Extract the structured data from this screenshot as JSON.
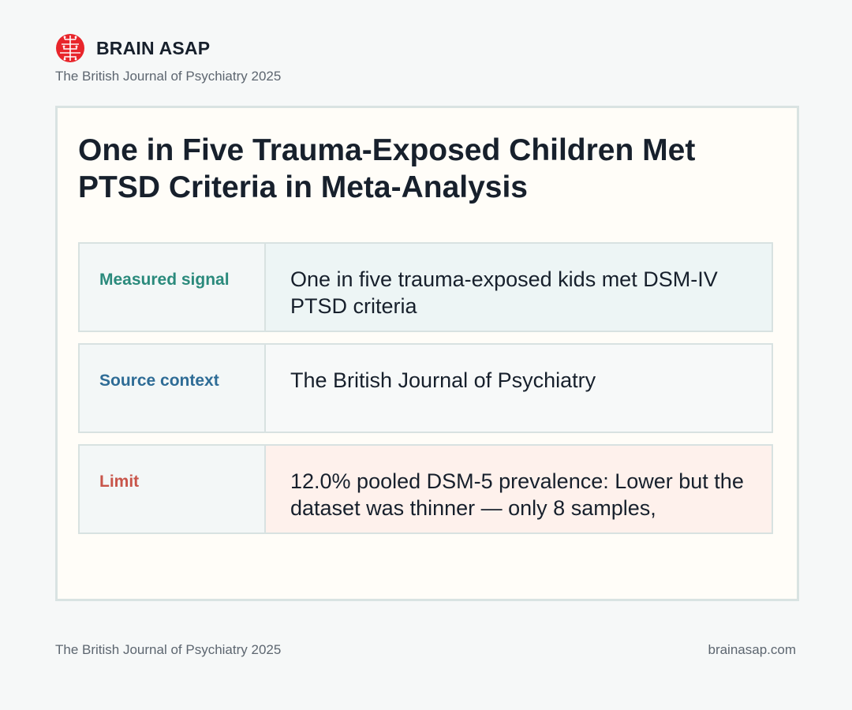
{
  "brand": {
    "name": "BRAIN ASAP",
    "subtitle": "The British Journal of Psychiatry 2025",
    "icon": "brain-icon",
    "icon_color": "#e8252b"
  },
  "card": {
    "headline": "One in Five Trauma-Exposed Children Met PTSD Criteria in Meta-Analysis",
    "rows": [
      {
        "label": "Measured signal",
        "value": "One in five trauma-exposed kids met DSM-IV PTSD criteria",
        "label_color": "#2a8a7c"
      },
      {
        "label": "Source context",
        "value": "The British Journal of Psychiatry",
        "label_color": "#2e6c96"
      },
      {
        "label": "Limit",
        "value": "12.0% pooled DSM-5 prevalence: Lower but the dataset was thinner — only 8 samples,",
        "label_color": "#c8554a"
      }
    ]
  },
  "footer": {
    "source": "The British Journal of Psychiatry 2025",
    "site": "brainasap.com"
  }
}
